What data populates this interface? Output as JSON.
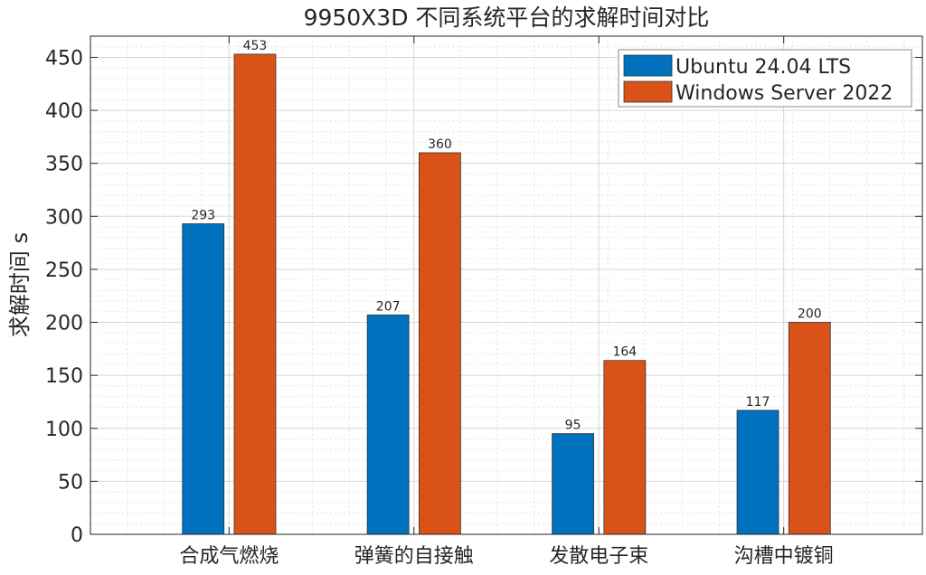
{
  "chart_data": {
    "type": "bar",
    "title": "9950X3D 不同系统平台的求解时间对比",
    "xlabel": "",
    "ylabel": "求解时间 s",
    "categories": [
      "合成气燃烧",
      "弹簧的自接触",
      "发散电子束",
      "沟槽中镀铜"
    ],
    "series": [
      {
        "name": "Ubuntu 24.04 LTS",
        "values": [
          293,
          207,
          95,
          117
        ],
        "color": "#0072BD"
      },
      {
        "name": "Windows Server 2022",
        "values": [
          453,
          360,
          164,
          200
        ],
        "color": "#D95319"
      }
    ],
    "ylim": [
      0,
      470
    ],
    "yticks": [
      0,
      50,
      100,
      150,
      200,
      250,
      300,
      350,
      400,
      450
    ],
    "grid": true,
    "minor_grid": true,
    "legend_position": "top-right",
    "data_labels": true
  }
}
